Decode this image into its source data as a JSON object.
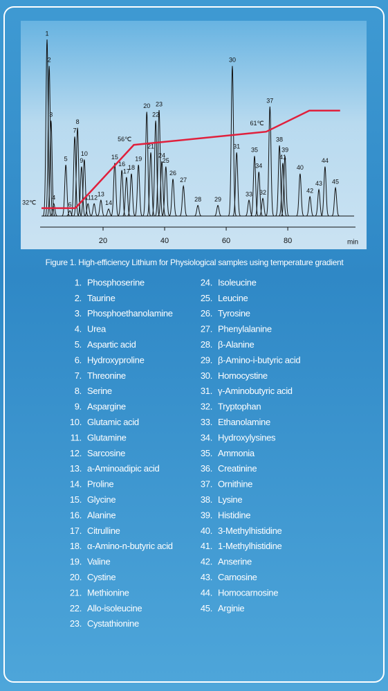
{
  "chart_data": {
    "type": "chromatogram",
    "xlim": [
      0,
      102
    ],
    "xticks": [
      20,
      40,
      60,
      80
    ],
    "x_unit": "min",
    "ylim": [
      0,
      100
    ],
    "peaks": [
      {
        "label": "1",
        "x": 1.8,
        "height": 100
      },
      {
        "label": "2",
        "x": 2.5,
        "height": 85
      },
      {
        "label": "3",
        "x": 3.1,
        "height": 54
      },
      {
        "label": "4",
        "x": 4.0,
        "height": 7
      },
      {
        "label": "5",
        "x": 7.9,
        "height": 29
      },
      {
        "label": "6",
        "x": 9.2,
        "height": 3
      },
      {
        "label": "7",
        "x": 10.8,
        "height": 45
      },
      {
        "label": "8",
        "x": 11.7,
        "height": 50
      },
      {
        "label": "9",
        "x": 13.0,
        "height": 28
      },
      {
        "label": "10",
        "x": 13.9,
        "height": 32
      },
      {
        "label": "11",
        "x": 15.1,
        "height": 7
      },
      {
        "label": "12",
        "x": 17.1,
        "height": 7
      },
      {
        "label": "13",
        "x": 19.3,
        "height": 9
      },
      {
        "label": "14",
        "x": 21.8,
        "height": 4
      },
      {
        "label": "15",
        "x": 23.8,
        "height": 30
      },
      {
        "label": "16",
        "x": 26.1,
        "height": 26
      },
      {
        "label": "17",
        "x": 27.6,
        "height": 22
      },
      {
        "label": "18",
        "x": 29.2,
        "height": 24
      },
      {
        "label": "19",
        "x": 31.5,
        "height": 29
      },
      {
        "label": "20",
        "x": 34.2,
        "height": 59
      },
      {
        "label": "21",
        "x": 35.5,
        "height": 36
      },
      {
        "label": "22",
        "x": 37.1,
        "height": 54
      },
      {
        "label": "23",
        "x": 38.2,
        "height": 60
      },
      {
        "label": "24",
        "x": 39.1,
        "height": 31
      },
      {
        "label": "25",
        "x": 40.4,
        "height": 28
      },
      {
        "label": "26",
        "x": 42.7,
        "height": 21
      },
      {
        "label": "27",
        "x": 46.1,
        "height": 17
      },
      {
        "label": "28",
        "x": 50.8,
        "height": 6
      },
      {
        "label": "29",
        "x": 57.3,
        "height": 6
      },
      {
        "label": "30",
        "x": 62.0,
        "height": 85
      },
      {
        "label": "31",
        "x": 63.4,
        "height": 36
      },
      {
        "label": "32",
        "x": 71.9,
        "height": 10
      },
      {
        "label": "33",
        "x": 67.4,
        "height": 9
      },
      {
        "label": "34",
        "x": 70.6,
        "height": 25
      },
      {
        "label": "35",
        "x": 69.2,
        "height": 34
      },
      {
        "label": "37",
        "x": 74.2,
        "height": 62
      },
      {
        "label": "38",
        "x": 77.3,
        "height": 40
      },
      {
        "label": "39",
        "x": 79.1,
        "height": 34
      },
      {
        "label": "40",
        "x": 84.0,
        "height": 24
      },
      {
        "label": "41",
        "x": 78.4,
        "height": 30
      },
      {
        "label": "42",
        "x": 87.2,
        "height": 11
      },
      {
        "label": "43",
        "x": 90.1,
        "height": 15
      },
      {
        "label": "44",
        "x": 92.1,
        "height": 28
      },
      {
        "label": "45",
        "x": 95.5,
        "height": 16
      }
    ],
    "y2lim": [
      29,
      96
    ],
    "temperature": {
      "color": "#e0203c",
      "x": [
        0,
        11,
        30,
        73,
        87,
        97
      ],
      "values": [
        32,
        32,
        56,
        61,
        69,
        69
      ]
    },
    "annotations": [
      {
        "text": "32℃",
        "x": -4,
        "y": 34
      },
      {
        "text": "56℃",
        "x": 27,
        "y": 58
      },
      {
        "text": "61℃",
        "x": 70,
        "y": 64
      }
    ],
    "caption": "Figure 1. High-efficiency Lithium for Physiological samples using temperature gradient"
  },
  "list": [
    {
      "number": "1.",
      "name": "Phosphoserine"
    },
    {
      "number": "2.",
      "name": "Taurine"
    },
    {
      "number": "3.",
      "name": "Phosphoethanolamine"
    },
    {
      "number": "4.",
      "name": "Urea"
    },
    {
      "number": "5.",
      "name": "Aspartic acid"
    },
    {
      "number": "6.",
      "name": "Hydroxyproline"
    },
    {
      "number": "7.",
      "name": "Threonine"
    },
    {
      "number": "8.",
      "name": "Serine"
    },
    {
      "number": "9.",
      "name": "Aspargine"
    },
    {
      "number": "10.",
      "name": "Glutamic acid"
    },
    {
      "number": "11.",
      "name": "Glutamine"
    },
    {
      "number": "12.",
      "name": "Sarcosine"
    },
    {
      "number": "13.",
      "name": "a-Aminoadipic acid"
    },
    {
      "number": "14.",
      "name": "Proline"
    },
    {
      "number": "15.",
      "name": "Glycine"
    },
    {
      "number": "16.",
      "name": "Alanine"
    },
    {
      "number": "17.",
      "name": "Citrulline"
    },
    {
      "number": "18.",
      "name": "α-Amino-n-butyric acid"
    },
    {
      "number": "19.",
      "name": "Valine"
    },
    {
      "number": "20.",
      "name": "Cystine"
    },
    {
      "number": "21.",
      "name": "Methionine"
    },
    {
      "number": "22.",
      "name": "Allo-isoleucine"
    },
    {
      "number": "23.",
      "name": "Cystathionine"
    },
    {
      "number": "24.",
      "name": "Isoleucine"
    },
    {
      "number": "25.",
      "name": "Leucine"
    },
    {
      "number": "26.",
      "name": "Tyrosine"
    },
    {
      "number": "27.",
      "name": "Phenylalanine"
    },
    {
      "number": "28.",
      "name": "β-Alanine"
    },
    {
      "number": "29.",
      "name": "β-Amino-i-butyric acid"
    },
    {
      "number": "30.",
      "name": "Homocystine"
    },
    {
      "number": "31.",
      "name": "γ-Aminobutyric acid"
    },
    {
      "number": "32.",
      "name": "Tryptophan"
    },
    {
      "number": "33.",
      "name": "Ethanolamine"
    },
    {
      "number": "34.",
      "name": "Hydroxylysines"
    },
    {
      "number": "35.",
      "name": "Ammonia"
    },
    {
      "number": "36.",
      "name": "Creatinine"
    },
    {
      "number": "37.",
      "name": "Ornithine"
    },
    {
      "number": "38.",
      "name": "Lysine"
    },
    {
      "number": "39.",
      "name": "Histidine"
    },
    {
      "number": "40.",
      "name": "3-Methylhistidine"
    },
    {
      "number": "41.",
      "name": "1-Methylhistidine"
    },
    {
      "number": "42.",
      "name": "Anserine"
    },
    {
      "number": "43.",
      "name": "Carnosine"
    },
    {
      "number": "44.",
      "name": "Homocarnosine"
    },
    {
      "number": "45.",
      "name": "Arginie"
    }
  ]
}
